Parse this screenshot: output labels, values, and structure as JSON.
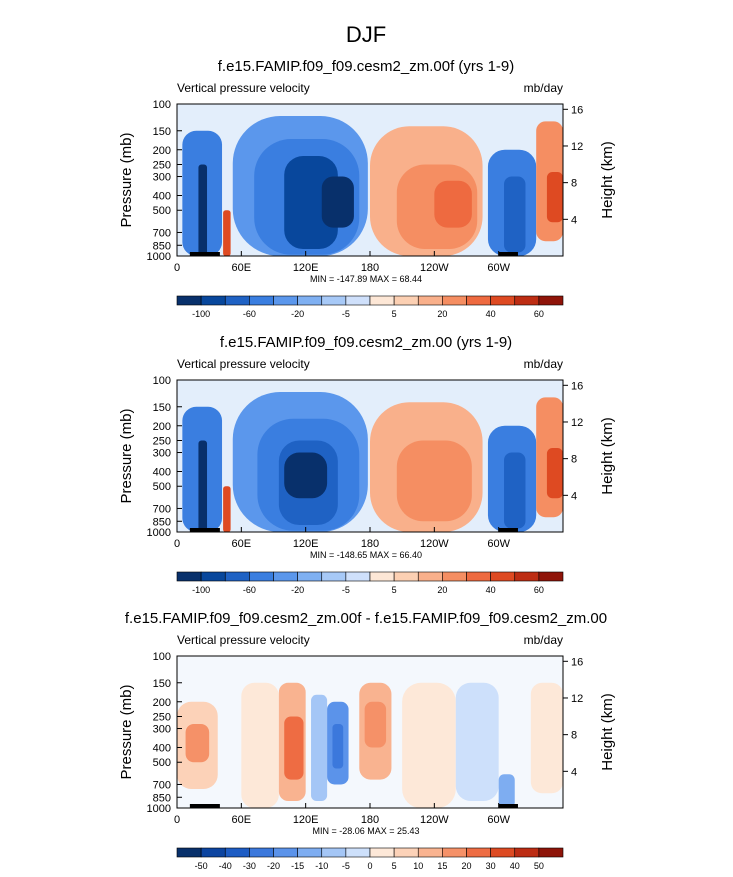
{
  "figure_title": "DJF",
  "colors": {
    "fill_levels_abs": [
      "#08306b",
      "#08479c",
      "#1f62c4",
      "#3a7ee0",
      "#5b97ec",
      "#7fb0f2",
      "#a7c9f7",
      "#cfe0fb",
      "#fde7d6",
      "#fcd0b3",
      "#f9b08b",
      "#f58e62",
      "#ee6a40",
      "#de4a22",
      "#bd2d13",
      "#8f1409"
    ],
    "fill_levels_diff": [
      "#08306b",
      "#0c44a0",
      "#1d5cc4",
      "#3b78dc",
      "#5b93ea",
      "#7eadf1",
      "#a4c6f6",
      "#cde0fb",
      "#fde8d8",
      "#fcd2b8",
      "#f9b390",
      "#f59168",
      "#ee6c43",
      "#dd4a22",
      "#bc2c13",
      "#8e1409"
    ]
  },
  "chart_data": [
    {
      "type": "heatmap",
      "title": "f.e15.FAMIP.f09_f09.cesm2_zm.00f (yrs 1-9)",
      "left_label": "Vertical pressure velocity",
      "right_label": "mb/day",
      "ylabel": "Pressure (mb)",
      "y2label": "Height (km)",
      "x_ticks": [
        "0",
        "60E",
        "120E",
        "180",
        "120W",
        "60W"
      ],
      "x_tick_values": [
        0,
        60,
        120,
        180,
        240,
        300
      ],
      "xlim": [
        0,
        360
      ],
      "y_ticks": [
        "100",
        "150",
        "200",
        "250",
        "300",
        "400",
        "500",
        "700",
        "850",
        "1000"
      ],
      "y_tick_values": [
        100,
        150,
        200,
        250,
        300,
        400,
        500,
        700,
        850,
        1000
      ],
      "ylim": [
        100,
        1000
      ],
      "y_scale": "log",
      "y2_ticks": [
        "4",
        "8",
        "12",
        "16"
      ],
      "y2_tick_values": [
        4,
        8,
        12,
        16
      ],
      "stats": "MIN = -147.89  MAX =  68.44",
      "colorbar_ticks": [
        "-100",
        "-60",
        "-20",
        "-5",
        "5",
        "20",
        "40",
        "60"
      ],
      "features": [
        {
          "lon": [
            5,
            42
          ],
          "p": [
            150,
            1000
          ],
          "value": -55
        },
        {
          "lon": [
            20,
            28
          ],
          "p": [
            250,
            1000
          ],
          "value": -110
        },
        {
          "lon": [
            43,
            50
          ],
          "p": [
            500,
            1000
          ],
          "value": 45
        },
        {
          "lon": [
            52,
            178
          ],
          "p": [
            120,
            1000
          ],
          "value": -35
        },
        {
          "lon": [
            72,
            170
          ],
          "p": [
            170,
            980
          ],
          "value": -60
        },
        {
          "lon": [
            100,
            150
          ],
          "p": [
            220,
            900
          ],
          "value": -85
        },
        {
          "lon": [
            135,
            165
          ],
          "p": [
            300,
            650
          ],
          "value": -125
        },
        {
          "lon": [
            180,
            285
          ],
          "p": [
            140,
            1000
          ],
          "value": 15
        },
        {
          "lon": [
            205,
            280
          ],
          "p": [
            250,
            900
          ],
          "value": 28
        },
        {
          "lon": [
            240,
            275
          ],
          "p": [
            320,
            650
          ],
          "value": 36
        },
        {
          "lon": [
            290,
            335
          ],
          "p": [
            200,
            1000
          ],
          "value": -45
        },
        {
          "lon": [
            305,
            325
          ],
          "p": [
            300,
            950
          ],
          "value": -80
        },
        {
          "lon": [
            335,
            360
          ],
          "p": [
            130,
            800
          ],
          "value": 25
        },
        {
          "lon": [
            345,
            360
          ],
          "p": [
            280,
            600
          ],
          "value": 42
        }
      ]
    },
    {
      "type": "heatmap",
      "title": "f.e15.FAMIP.f09_f09.cesm2_zm.00 (yrs 1-9)",
      "left_label": "Vertical pressure velocity",
      "right_label": "mb/day",
      "ylabel": "Pressure (mb)",
      "y2label": "Height (km)",
      "x_ticks": [
        "0",
        "60E",
        "120E",
        "180",
        "120W",
        "60W"
      ],
      "x_tick_values": [
        0,
        60,
        120,
        180,
        240,
        300
      ],
      "xlim": [
        0,
        360
      ],
      "y_ticks": [
        "100",
        "150",
        "200",
        "250",
        "300",
        "400",
        "500",
        "700",
        "850",
        "1000"
      ],
      "y_tick_values": [
        100,
        150,
        200,
        250,
        300,
        400,
        500,
        700,
        850,
        1000
      ],
      "ylim": [
        100,
        1000
      ],
      "y_scale": "log",
      "y2_ticks": [
        "4",
        "8",
        "12",
        "16"
      ],
      "y2_tick_values": [
        4,
        8,
        12,
        16
      ],
      "stats": "MIN = -148.65  MAX =  66.40",
      "colorbar_ticks": [
        "-100",
        "-60",
        "-20",
        "-5",
        "5",
        "20",
        "40",
        "60"
      ],
      "features": [
        {
          "lon": [
            5,
            42
          ],
          "p": [
            150,
            1000
          ],
          "value": -55
        },
        {
          "lon": [
            20,
            28
          ],
          "p": [
            250,
            1000
          ],
          "value": -110
        },
        {
          "lon": [
            43,
            50
          ],
          "p": [
            500,
            1000
          ],
          "value": 45
        },
        {
          "lon": [
            52,
            178
          ],
          "p": [
            120,
            1000
          ],
          "value": -32
        },
        {
          "lon": [
            75,
            170
          ],
          "p": [
            180,
            980
          ],
          "value": -55
        },
        {
          "lon": [
            95,
            150
          ],
          "p": [
            250,
            900
          ],
          "value": -80
        },
        {
          "lon": [
            100,
            140
          ],
          "p": [
            300,
            600
          ],
          "value": -110
        },
        {
          "lon": [
            180,
            285
          ],
          "p": [
            140,
            1000
          ],
          "value": 12
        },
        {
          "lon": [
            205,
            275
          ],
          "p": [
            250,
            850
          ],
          "value": 22
        },
        {
          "lon": [
            290,
            335
          ],
          "p": [
            200,
            1000
          ],
          "value": -45
        },
        {
          "lon": [
            305,
            325
          ],
          "p": [
            300,
            950
          ],
          "value": -80
        },
        {
          "lon": [
            335,
            360
          ],
          "p": [
            130,
            800
          ],
          "value": 25
        },
        {
          "lon": [
            345,
            360
          ],
          "p": [
            280,
            600
          ],
          "value": 40
        }
      ]
    },
    {
      "type": "heatmap",
      "title": "f.e15.FAMIP.f09_f09.cesm2_zm.00f - f.e15.FAMIP.f09_f09.cesm2_zm.00",
      "left_label": "Vertical pressure velocity",
      "right_label": "mb/day",
      "ylabel": "Pressure (mb)",
      "y2label": "Height (km)",
      "x_ticks": [
        "0",
        "60E",
        "120E",
        "180",
        "120W",
        "60W"
      ],
      "x_tick_values": [
        0,
        60,
        120,
        180,
        240,
        300
      ],
      "xlim": [
        0,
        360
      ],
      "y_ticks": [
        "100",
        "150",
        "200",
        "250",
        "300",
        "400",
        "500",
        "700",
        "850",
        "1000"
      ],
      "y_tick_values": [
        100,
        150,
        200,
        250,
        300,
        400,
        500,
        700,
        850,
        1000
      ],
      "ylim": [
        100,
        1000
      ],
      "y_scale": "log",
      "y2_ticks": [
        "4",
        "8",
        "12",
        "16"
      ],
      "y2_tick_values": [
        4,
        8,
        12,
        16
      ],
      "stats": "MIN = -28.06  MAX =  25.43",
      "colorbar_ticks": [
        "-50",
        "-40",
        "-30",
        "-20",
        "-15",
        "-10",
        "-5",
        "0",
        "5",
        "10",
        "15",
        "20",
        "30",
        "40",
        "50"
      ],
      "features": [
        {
          "lon": [
            0,
            38
          ],
          "p": [
            200,
            750
          ],
          "value": 8
        },
        {
          "lon": [
            8,
            30
          ],
          "p": [
            280,
            500
          ],
          "value": 15
        },
        {
          "lon": [
            60,
            95
          ],
          "p": [
            150,
            1000
          ],
          "value": 3
        },
        {
          "lon": [
            95,
            120
          ],
          "p": [
            150,
            900
          ],
          "value": 12
        },
        {
          "lon": [
            100,
            118
          ],
          "p": [
            250,
            650
          ],
          "value": 22
        },
        {
          "lon": [
            125,
            140
          ],
          "p": [
            180,
            900
          ],
          "value": -10
        },
        {
          "lon": [
            140,
            160
          ],
          "p": [
            200,
            700
          ],
          "value": -17
        },
        {
          "lon": [
            145,
            155
          ],
          "p": [
            280,
            550
          ],
          "value": -25
        },
        {
          "lon": [
            170,
            200
          ],
          "p": [
            150,
            650
          ],
          "value": 12
        },
        {
          "lon": [
            175,
            195
          ],
          "p": [
            200,
            400
          ],
          "value": 18
        },
        {
          "lon": [
            210,
            260
          ],
          "p": [
            150,
            1000
          ],
          "value": 3
        },
        {
          "lon": [
            260,
            300
          ],
          "p": [
            150,
            900
          ],
          "value": -4
        },
        {
          "lon": [
            300,
            315
          ],
          "p": [
            600,
            1000
          ],
          "value": -12
        },
        {
          "lon": [
            330,
            360
          ],
          "p": [
            150,
            800
          ],
          "value": 3
        }
      ]
    }
  ]
}
